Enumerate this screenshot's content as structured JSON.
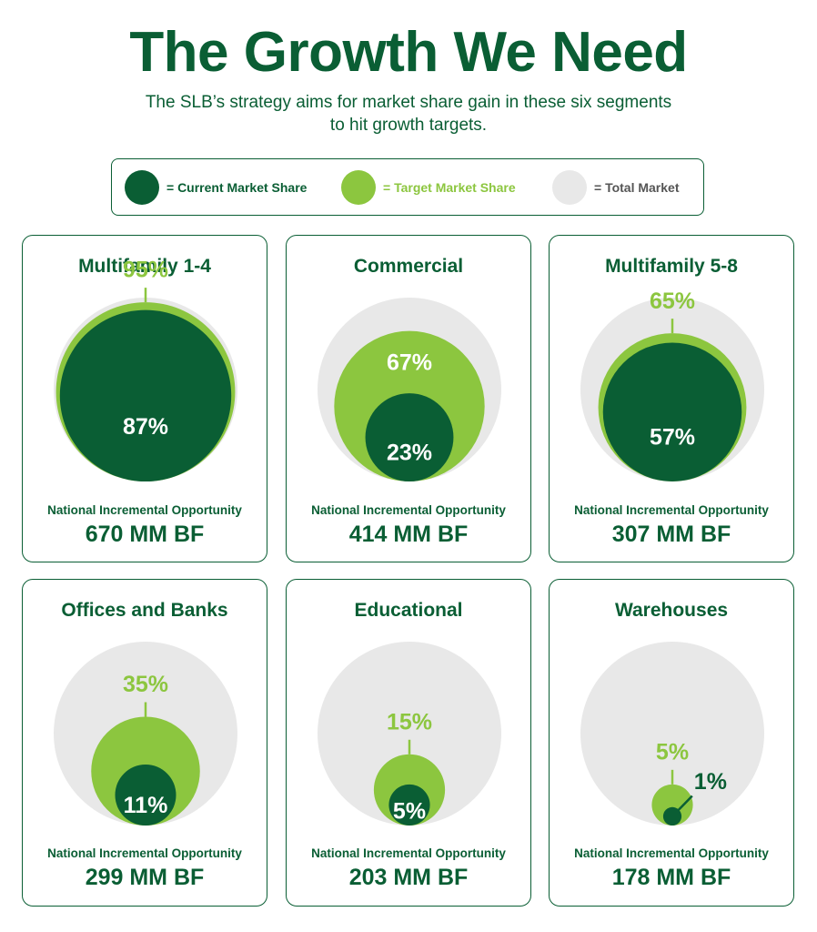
{
  "title": "The Growth We Need",
  "subtitle": [
    "The SLB’s strategy aims for market share gain in these six segments",
    "to hit growth targets."
  ],
  "legend": [
    {
      "label": "= Current Market Share",
      "color": "#0a5e34"
    },
    {
      "label": "= Target Market Share",
      "color": "#8cc63f"
    },
    {
      "label": "= Total Market",
      "color": "#e8e8e8"
    }
  ],
  "colors": {
    "current": "#0a5e34",
    "target": "#8cc63f",
    "total": "#e8e8e8",
    "text_light": "#ffffff"
  },
  "opportunity_label": "National Incremental Opportunity",
  "chart_data": {
    "type": "nested-circles",
    "title": "The Growth We Need",
    "segments": [
      {
        "name": "Multifamily 1-4",
        "current": 87,
        "target": 95,
        "current_label": "87%",
        "target_label": "95%",
        "opportunity": "670 MM BF"
      },
      {
        "name": "Commercial",
        "current": 23,
        "target": 67,
        "current_label": "23%",
        "target_label": "67%",
        "opportunity": "414 MM BF"
      },
      {
        "name": "Multifamily 5-8",
        "current": 57,
        "target": 65,
        "current_label": "57%",
        "target_label": "65%",
        "opportunity": "307 MM BF"
      },
      {
        "name": "Offices and Banks",
        "current": 11,
        "target": 35,
        "current_label": "11%",
        "target_label": "35%",
        "opportunity": "299 MM BF"
      },
      {
        "name": "Educational",
        "current": 5,
        "target": 15,
        "current_label": "5%",
        "target_label": "15%",
        "opportunity": "203 MM BF"
      },
      {
        "name": "Warehouses",
        "current": 1,
        "target": 5,
        "current_label": "1%",
        "target_label": "5%",
        "opportunity": "178 MM BF"
      }
    ]
  }
}
